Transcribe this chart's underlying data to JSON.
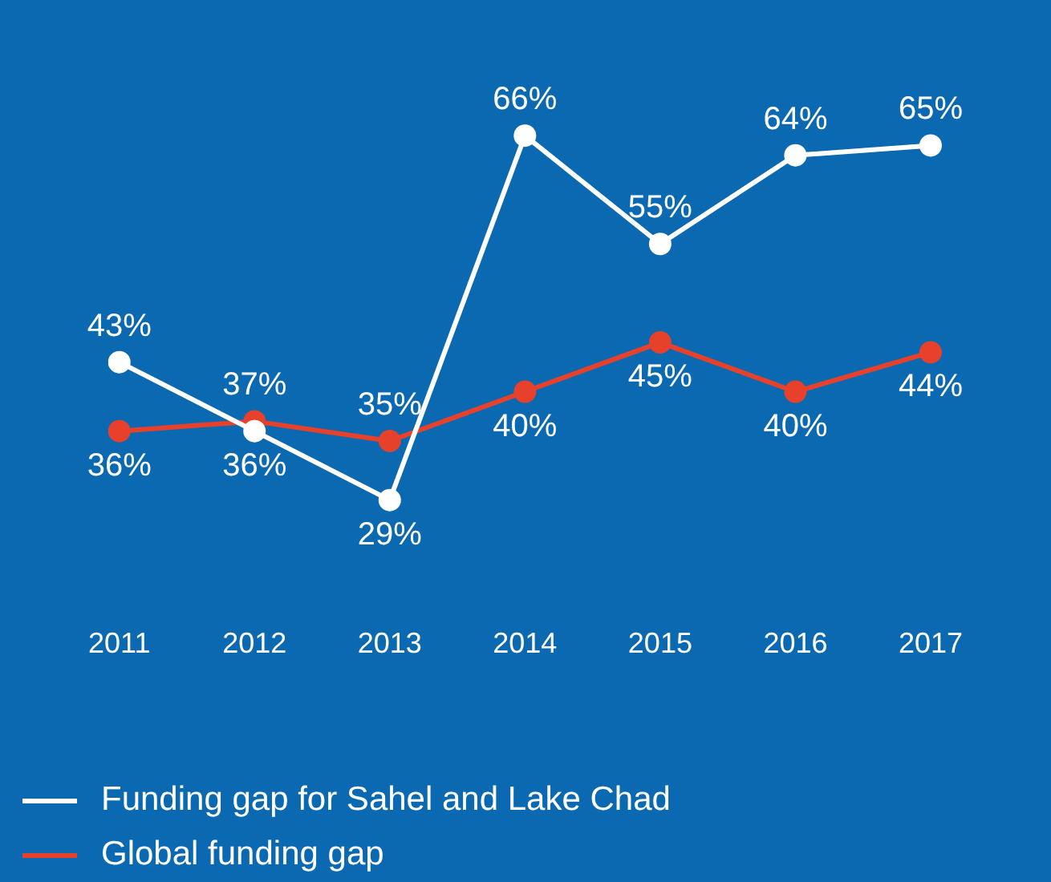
{
  "chart_data": {
    "type": "line",
    "categories": [
      "2011",
      "2012",
      "2013",
      "2014",
      "2015",
      "2016",
      "2017"
    ],
    "series": [
      {
        "name": "Funding gap for Sahel and Lake Chad",
        "color": "#ffffff",
        "values": [
          43,
          36,
          29,
          66,
          55,
          64,
          65
        ],
        "value_labels": [
          "43%",
          "36%",
          "29%",
          "66%",
          "55%",
          "64%",
          "65%"
        ]
      },
      {
        "name": "Global funding gap",
        "color": "#e8412b",
        "values": [
          36,
          37,
          35,
          40,
          45,
          40,
          44
        ],
        "value_labels": [
          "36%",
          "37%",
          "35%",
          "40%",
          "45%",
          "40%",
          "44%"
        ]
      }
    ],
    "marker": "circle",
    "line_style": "solid",
    "grid": false,
    "legend": "bottom left",
    "tick_labels": "x"
  }
}
